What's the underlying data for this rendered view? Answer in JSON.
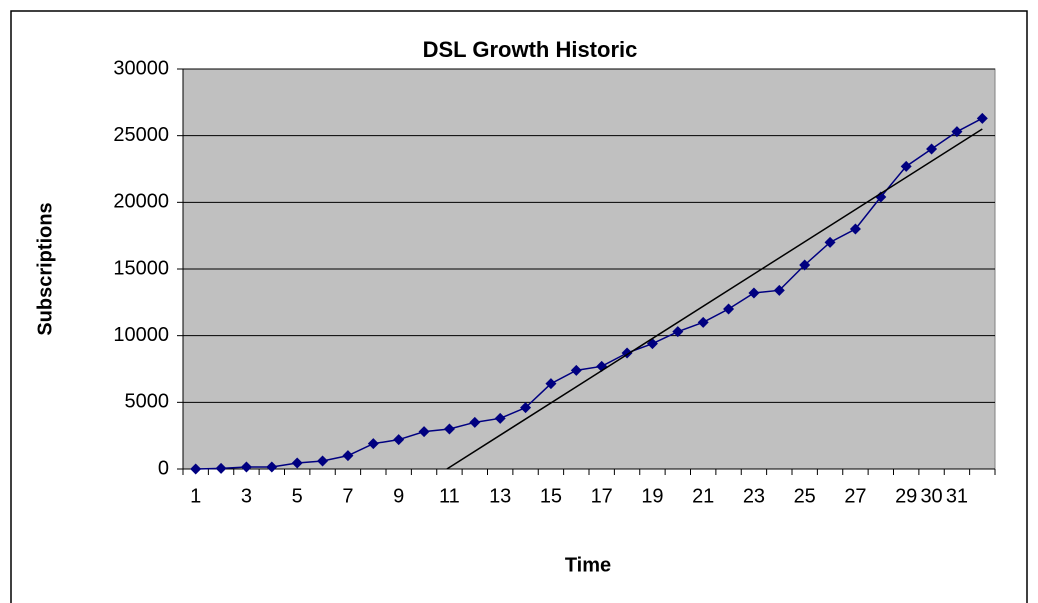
{
  "chart_data": {
    "type": "line",
    "title": "DSL Growth Historic",
    "x_label": "Time",
    "y_label": "Subscriptions",
    "categories": [
      1,
      null,
      3,
      null,
      5,
      null,
      7,
      null,
      9,
      null,
      11,
      null,
      13,
      null,
      15,
      null,
      17,
      null,
      19,
      null,
      21,
      null,
      23,
      null,
      25,
      null,
      27,
      null,
      29,
      30,
      31,
      null
    ],
    "series": [
      {
        "color": "#000080",
        "values": [
          0,
          50,
          150,
          150,
          450,
          600,
          1000,
          1900,
          2200,
          2800,
          3000,
          3500,
          3800,
          4600,
          6400,
          7400,
          7700,
          8700,
          9400,
          10300,
          11000,
          12000,
          13200,
          13400,
          15300,
          17000,
          18000,
          20400,
          22700,
          24000,
          25300,
          26300
        ]
      }
    ],
    "trendline": {
      "x": [
        10.9,
        32
      ],
      "values": [
        0,
        25500
      ],
      "color": "#000000"
    },
    "ylim": [
      0,
      30000
    ],
    "yticks": [
      0,
      5000,
      10000,
      15000,
      20000,
      25000,
      30000
    ],
    "grid": true,
    "plot_background": "#c0c0c0"
  }
}
